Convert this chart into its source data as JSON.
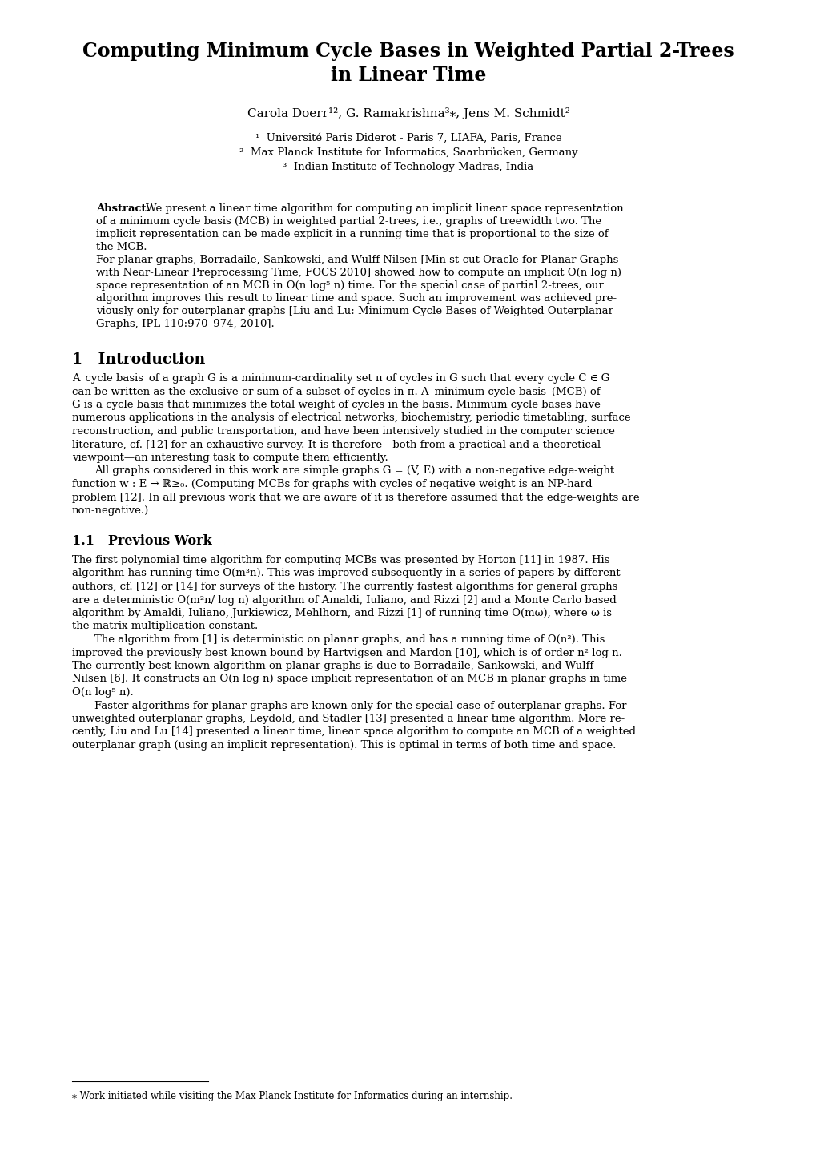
{
  "title_line1": "Computing Minimum Cycle Bases in Weighted Partial 2-Trees",
  "title_line2": "in Linear Time",
  "author_line": "Carola Doerr¹², G. Ramakrishna³*, Jens M. Schmidt²",
  "affil1": "¹  Université Paris Diderot - Paris 7, LIAFA, Paris, France",
  "affil2": "²  Max Planck Institute for Informatics, Saarbrücken, Germany",
  "affil3": "³  Indian Institute of Technology Madras, India",
  "background_color": "#ffffff"
}
